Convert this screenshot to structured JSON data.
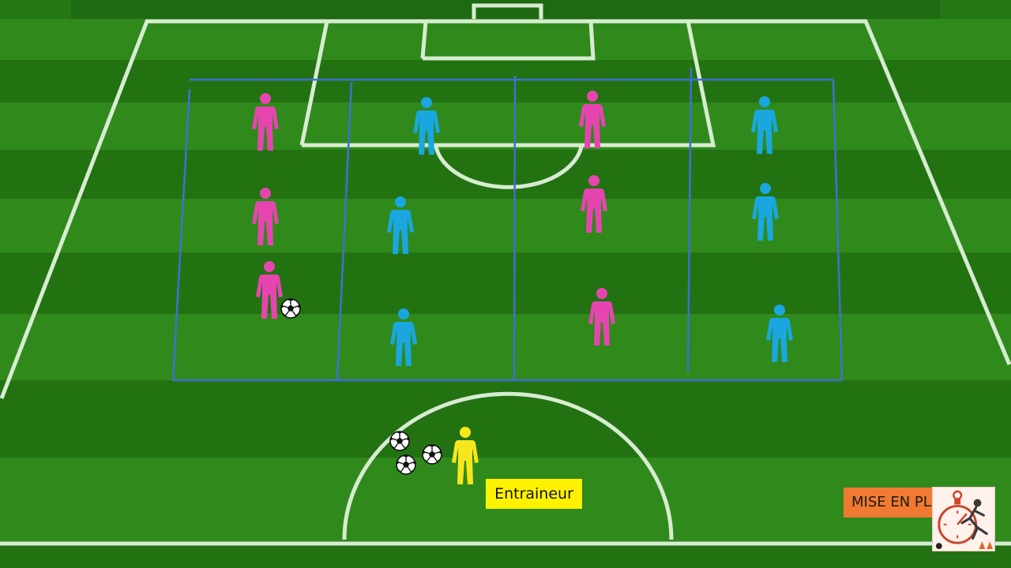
{
  "coach": {
    "label": "Entraineur"
  },
  "badge": {
    "text": "MISE EN PLACE",
    "visible_text": "MISE EN PL"
  },
  "colors": {
    "team_pink": "#e645b0",
    "team_blue": "#1aa6de",
    "coach_yellow": "#f6e71d",
    "grid_lines": "#3f6fd6",
    "pitch_lines": "#d8ecd2",
    "badge_orange": "#f07a32",
    "label_yellow": "#fff200"
  },
  "icons": {
    "player": "player-icon",
    "ball": "ball-icon",
    "logo": "stopwatch-footballer-logo"
  },
  "players": {
    "pink_count": 6,
    "blue_count": 6
  },
  "zones": {
    "count": 4
  },
  "balls": {
    "count": 4
  }
}
